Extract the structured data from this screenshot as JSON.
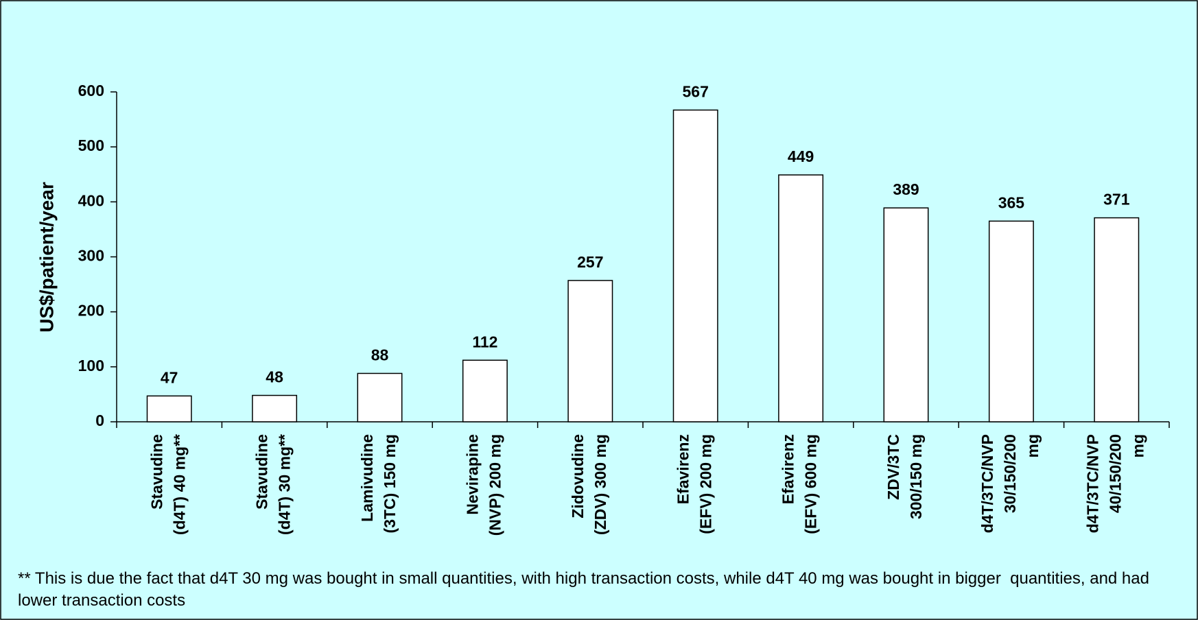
{
  "chart_data": {
    "type": "bar",
    "y_label": "US$/patient/year",
    "categories": [
      [
        "Stavudine",
        "(d4T) 40 mg**"
      ],
      [
        "Stavudine",
        "(d4T) 30 mg**"
      ],
      [
        "Lamivudine",
        "(3TC) 150 mg"
      ],
      [
        "Nevirapine",
        "(NVP) 200 mg"
      ],
      [
        "Zidovudine",
        "(ZDV) 300 mg"
      ],
      [
        "Efavirenz",
        "(EFV) 200 mg"
      ],
      [
        "Efavirenz",
        "(EFV) 600 mg"
      ],
      [
        "ZDV/3TC",
        "300/150 mg"
      ],
      [
        "d4T/3TC/NVP",
        "30/150/200",
        "mg"
      ],
      [
        "d4T/3TC/NVP",
        "40/150/200",
        "mg"
      ]
    ],
    "values": [
      47,
      48,
      88,
      112,
      257,
      567,
      449,
      389,
      365,
      371
    ],
    "color": "#ffffff",
    "ylim": [
      0,
      600
    ],
    "yticks": [
      0,
      100,
      200,
      300,
      400,
      500,
      600
    ],
    "footnote": "** This is due the fact that d4T 30 mg was bought in small quantities, with high transaction costs, while d4T 40 mg was bought in bigger  quantities, and had lower transaction costs"
  }
}
